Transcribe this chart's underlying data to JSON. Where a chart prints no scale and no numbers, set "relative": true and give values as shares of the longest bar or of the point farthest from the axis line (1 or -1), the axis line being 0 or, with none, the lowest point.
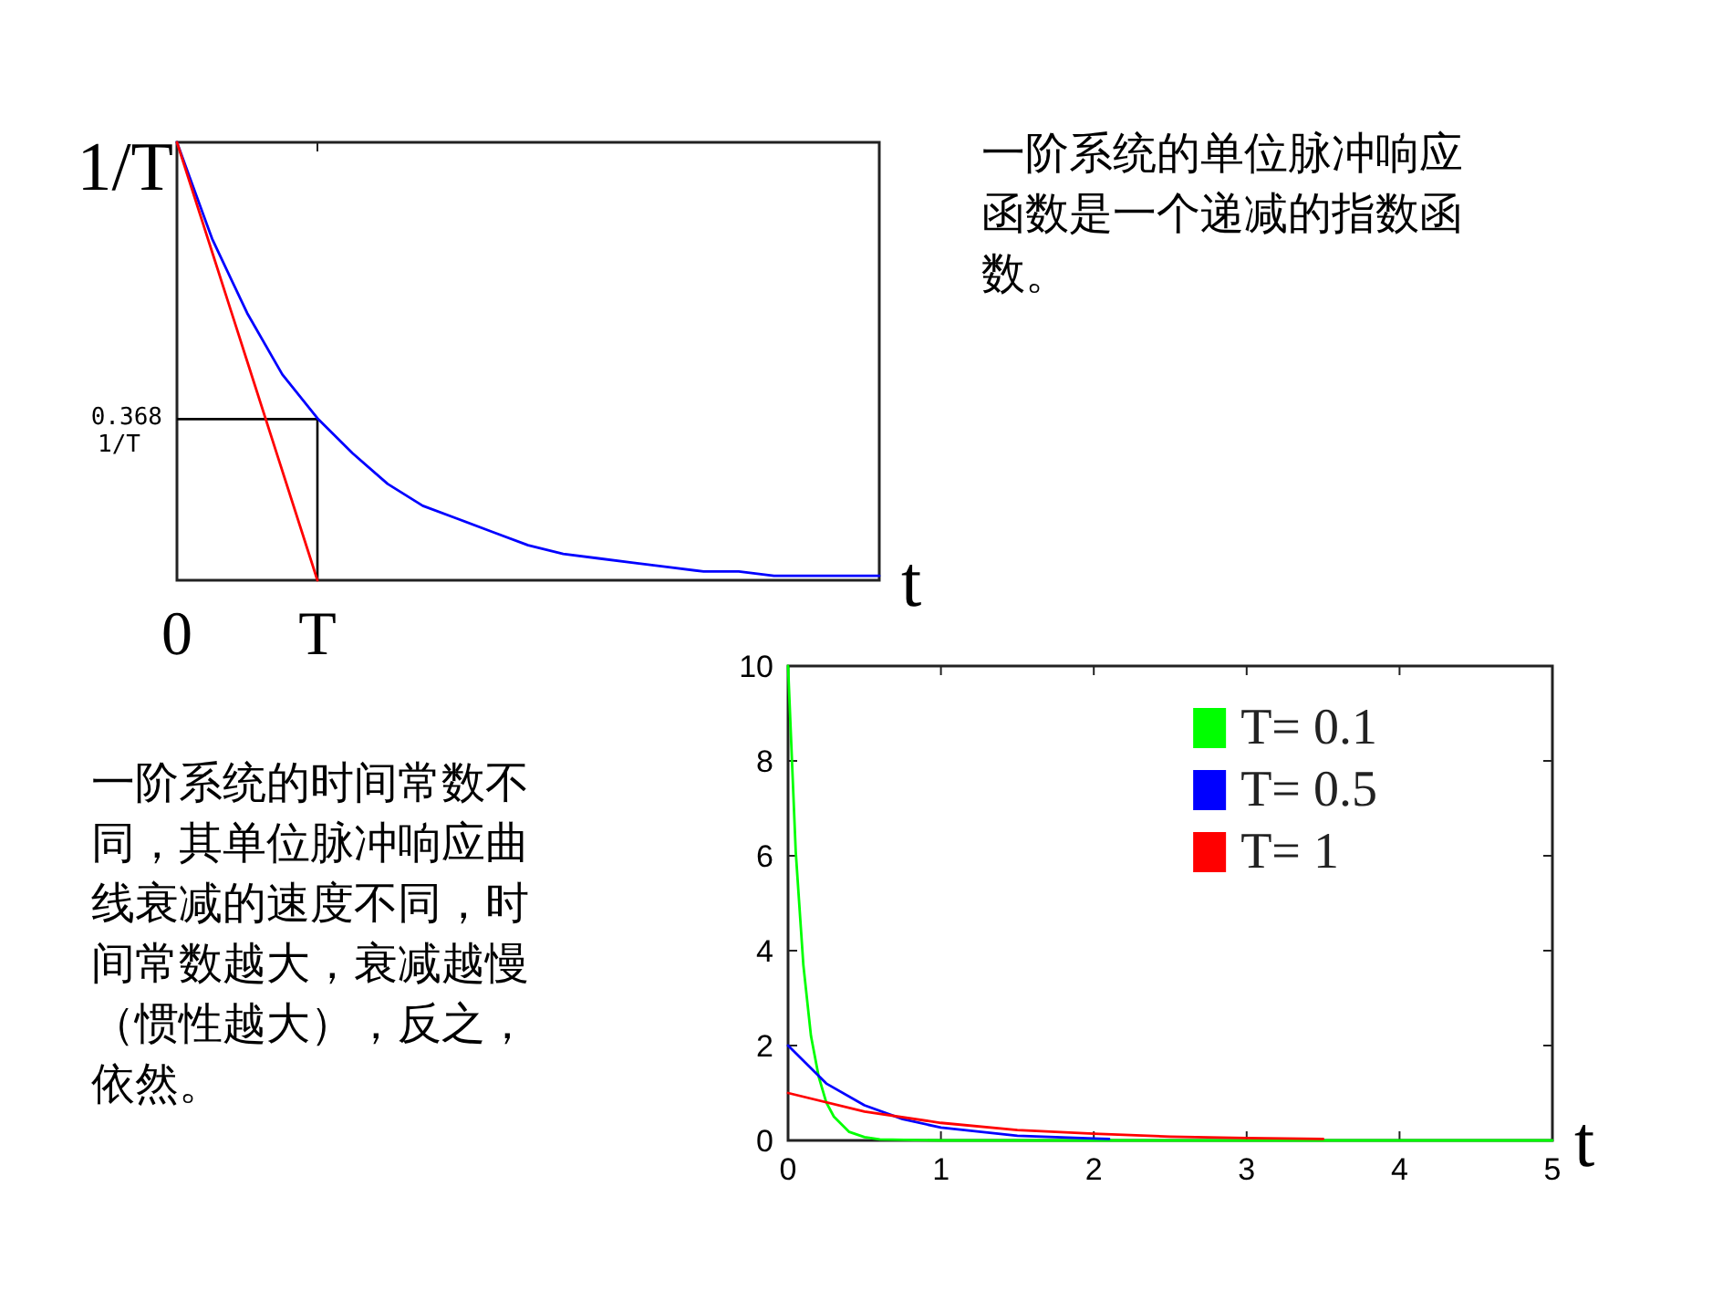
{
  "chart_data": [
    {
      "type": "line",
      "xlabel": "t",
      "relative": true,
      "categories": [
        "0",
        null,
        null,
        null,
        "T",
        null,
        null,
        null,
        null,
        null,
        null,
        null,
        null,
        null,
        null,
        null,
        null,
        null,
        null,
        null,
        null
      ],
      "series": [
        {
          "color": "#0000ff",
          "values": [
            1,
            0.78,
            0.61,
            0.47,
            0.37,
            0.29,
            0.22,
            0.17,
            0.14,
            0.11,
            0.08,
            0.06,
            0.05,
            0.04,
            0.03,
            0.02,
            0.02,
            0.01,
            0.01,
            0.01,
            0.01
          ]
        },
        {
          "color": "#ff0000",
          "values": [
            1,
            0.75,
            0.5,
            0.25,
            0,
            null,
            null,
            null,
            null,
            null,
            null,
            null,
            null,
            null,
            null,
            null,
            null,
            null,
            null,
            null,
            null
          ]
        }
      ],
      "ref_lines": [
        {
          "axis": "y",
          "value": 0.368,
          "label": "0.368 1/T",
          "color": "#000000"
        },
        {
          "axis": "x",
          "value": "T",
          "color": "#000000"
        }
      ],
      "grid": false,
      "legend": false,
      "marker": "none",
      "line_style": "solid",
      "annotations": [
        {
          "text": "1/T",
          "x": "0",
          "y": 1
        },
        "一阶系统的单位脉冲响应函数是一个递减的指数函数。"
      ]
    },
    {
      "type": "line",
      "xlabel": "t",
      "xlim": [
        0,
        5
      ],
      "ylim": [
        0,
        10
      ],
      "xticks": [
        0,
        1,
        2,
        3,
        4,
        5
      ],
      "yticks": [
        0,
        2,
        4,
        6,
        8,
        10
      ],
      "series": [
        {
          "name": "T= 0.1",
          "color": "#00ff00",
          "x": [
            0,
            0.05,
            0.1,
            0.15,
            0.2,
            0.25,
            0.3,
            0.4,
            0.5,
            0.6,
            1,
            5
          ],
          "values": [
            10,
            6.1,
            3.7,
            2.2,
            1.35,
            0.8,
            0.5,
            0.18,
            0.07,
            0.02,
            0,
            0
          ]
        },
        {
          "name": "T= 0.5",
          "color": "#0000ff",
          "x": [
            0,
            0.25,
            0.5,
            0.75,
            1,
            1.5,
            2,
            2.1
          ],
          "values": [
            2,
            1.2,
            0.74,
            0.45,
            0.27,
            0.1,
            0.04,
            0.03
          ]
        },
        {
          "name": "T= 1",
          "color": "#ff0000",
          "x": [
            0,
            0.5,
            1,
            1.5,
            2,
            2.5,
            3,
            3.5
          ],
          "values": [
            1,
            0.61,
            0.37,
            0.22,
            0.14,
            0.08,
            0.05,
            0.03
          ]
        }
      ],
      "grid": false,
      "legend": "top right",
      "marker": "none",
      "line_style": "solid",
      "annotations": [
        "一阶系统的时间常数不同，其单位脉冲响应曲线衰减的速度不同，时间常数越大，衰减越慢（惯性越大），反之，依然。"
      ]
    }
  ]
}
